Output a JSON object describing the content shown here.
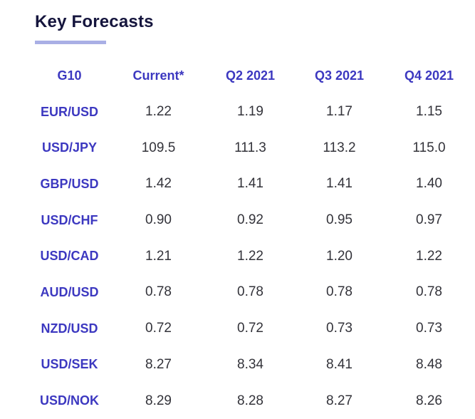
{
  "section": {
    "title": "Key Forecasts"
  },
  "colors": {
    "brand_purple": "#3c38c0",
    "accent": "#a9afe5",
    "title_text": "#15153d",
    "value_text": "#33333a"
  },
  "table": {
    "columns": [
      "G10",
      "Current*",
      "Q2 2021",
      "Q3 2021",
      "Q4 2021"
    ],
    "rows": [
      {
        "pair": "EUR/USD",
        "values": [
          "1.22",
          "1.19",
          "1.17",
          "1.15"
        ]
      },
      {
        "pair": "USD/JPY",
        "values": [
          "109.5",
          "111.3",
          "113.2",
          "115.0"
        ]
      },
      {
        "pair": "GBP/USD",
        "values": [
          "1.42",
          "1.41",
          "1.41",
          "1.40"
        ]
      },
      {
        "pair": "USD/CHF",
        "values": [
          "0.90",
          "0.92",
          "0.95",
          "0.97"
        ]
      },
      {
        "pair": "USD/CAD",
        "values": [
          "1.21",
          "1.22",
          "1.20",
          "1.22"
        ]
      },
      {
        "pair": "AUD/USD",
        "values": [
          "0.78",
          "0.78",
          "0.78",
          "0.78"
        ]
      },
      {
        "pair": "NZD/USD",
        "values": [
          "0.72",
          "0.72",
          "0.73",
          "0.73"
        ]
      },
      {
        "pair": "USD/SEK",
        "values": [
          "8.27",
          "8.34",
          "8.41",
          "8.48"
        ]
      },
      {
        "pair": "USD/NOK",
        "values": [
          "8.29",
          "8.28",
          "8.27",
          "8.26"
        ]
      }
    ]
  }
}
